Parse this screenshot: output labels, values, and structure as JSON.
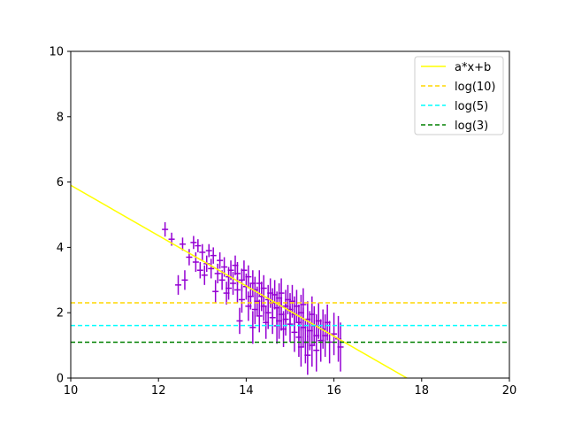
{
  "chart_data": {
    "type": "scatter",
    "title": "",
    "xlabel": "",
    "ylabel": "",
    "xlim": [
      10,
      20
    ],
    "ylim": [
      0,
      10
    ],
    "xticks": [
      "10",
      "12",
      "14",
      "16",
      "18",
      "20"
    ],
    "yticks": [
      "0",
      "2",
      "4",
      "6",
      "8",
      "10"
    ],
    "grid": false,
    "legend_position": "top-right",
    "colors": {
      "points": "#9400d3",
      "fit": "#ffff00",
      "log10": "#ffd700",
      "log5": "#00ffff",
      "log3": "#008000"
    },
    "lines": [
      {
        "name": "a*x+b",
        "kind": "linear",
        "slope": -0.77,
        "intercept": 13.6,
        "style": "solid",
        "color": "#ffff00"
      },
      {
        "name": "log(10)",
        "kind": "hline",
        "y": 2.303,
        "style": "dashed",
        "color": "#ffd700"
      },
      {
        "name": "log(5)",
        "kind": "hline",
        "y": 1.609,
        "style": "dashed",
        "color": "#00ffff"
      },
      {
        "name": "log(3)",
        "kind": "hline",
        "y": 1.099,
        "style": "dashed",
        "color": "#008000"
      }
    ],
    "points": [
      {
        "x": 12.15,
        "y": 4.55,
        "yerr": 0.22
      },
      {
        "x": 12.3,
        "y": 4.25,
        "yerr": 0.2
      },
      {
        "x": 12.45,
        "y": 2.85,
        "yerr": 0.3
      },
      {
        "x": 12.55,
        "y": 4.1,
        "yerr": 0.2
      },
      {
        "x": 12.6,
        "y": 3.0,
        "yerr": 0.3
      },
      {
        "x": 12.7,
        "y": 3.7,
        "yerr": 0.25
      },
      {
        "x": 12.8,
        "y": 4.15,
        "yerr": 0.2
      },
      {
        "x": 12.85,
        "y": 3.55,
        "yerr": 0.3
      },
      {
        "x": 12.9,
        "y": 4.05,
        "yerr": 0.2
      },
      {
        "x": 12.95,
        "y": 3.3,
        "yerr": 0.25
      },
      {
        "x": 13.0,
        "y": 3.85,
        "yerr": 0.25
      },
      {
        "x": 13.05,
        "y": 3.15,
        "yerr": 0.3
      },
      {
        "x": 13.1,
        "y": 3.5,
        "yerr": 0.25
      },
      {
        "x": 13.15,
        "y": 3.9,
        "yerr": 0.2
      },
      {
        "x": 13.2,
        "y": 3.35,
        "yerr": 0.3
      },
      {
        "x": 13.25,
        "y": 3.75,
        "yerr": 0.25
      },
      {
        "x": 13.3,
        "y": 2.65,
        "yerr": 0.35
      },
      {
        "x": 13.35,
        "y": 3.2,
        "yerr": 0.3
      },
      {
        "x": 13.4,
        "y": 3.6,
        "yerr": 0.25
      },
      {
        "x": 13.45,
        "y": 3.0,
        "yerr": 0.3
      },
      {
        "x": 13.5,
        "y": 3.4,
        "yerr": 0.3
      },
      {
        "x": 13.55,
        "y": 2.6,
        "yerr": 0.35
      },
      {
        "x": 13.6,
        "y": 3.1,
        "yerr": 0.3
      },
      {
        "x": 13.65,
        "y": 3.3,
        "yerr": 0.3
      },
      {
        "x": 13.7,
        "y": 2.9,
        "yerr": 0.35
      },
      {
        "x": 13.75,
        "y": 3.45,
        "yerr": 0.3
      },
      {
        "x": 13.8,
        "y": 2.7,
        "yerr": 0.4
      },
      {
        "x": 13.8,
        "y": 3.2,
        "yerr": 0.35
      },
      {
        "x": 13.85,
        "y": 1.75,
        "yerr": 0.4
      },
      {
        "x": 13.9,
        "y": 3.0,
        "yerr": 0.35
      },
      {
        "x": 13.9,
        "y": 2.4,
        "yerr": 0.4
      },
      {
        "x": 13.95,
        "y": 3.3,
        "yerr": 0.3
      },
      {
        "x": 14.0,
        "y": 2.8,
        "yerr": 0.4
      },
      {
        "x": 14.05,
        "y": 2.2,
        "yerr": 0.45
      },
      {
        "x": 14.05,
        "y": 3.1,
        "yerr": 0.35
      },
      {
        "x": 14.1,
        "y": 2.5,
        "yerr": 0.4
      },
      {
        "x": 14.15,
        "y": 2.9,
        "yerr": 0.4
      },
      {
        "x": 14.2,
        "y": 2.1,
        "yerr": 0.45
      },
      {
        "x": 14.2,
        "y": 2.7,
        "yerr": 0.4
      },
      {
        "x": 14.25,
        "y": 2.35,
        "yerr": 0.45
      },
      {
        "x": 14.3,
        "y": 2.9,
        "yerr": 0.4
      },
      {
        "x": 14.3,
        "y": 1.9,
        "yerr": 0.5
      },
      {
        "x": 14.35,
        "y": 2.5,
        "yerr": 0.45
      },
      {
        "x": 14.4,
        "y": 2.2,
        "yerr": 0.45
      },
      {
        "x": 14.4,
        "y": 2.75,
        "yerr": 0.4
      },
      {
        "x": 14.45,
        "y": 1.7,
        "yerr": 0.5
      },
      {
        "x": 14.5,
        "y": 2.4,
        "yerr": 0.45
      },
      {
        "x": 14.5,
        "y": 2.0,
        "yerr": 0.5
      },
      {
        "x": 14.55,
        "y": 2.6,
        "yerr": 0.45
      },
      {
        "x": 14.6,
        "y": 1.85,
        "yerr": 0.5
      },
      {
        "x": 14.6,
        "y": 2.3,
        "yerr": 0.45
      },
      {
        "x": 14.65,
        "y": 2.55,
        "yerr": 0.45
      },
      {
        "x": 14.7,
        "y": 1.6,
        "yerr": 0.55
      },
      {
        "x": 14.7,
        "y": 2.15,
        "yerr": 0.5
      },
      {
        "x": 14.75,
        "y": 2.45,
        "yerr": 0.45
      },
      {
        "x": 14.8,
        "y": 1.95,
        "yerr": 0.5
      },
      {
        "x": 14.8,
        "y": 2.6,
        "yerr": 0.45
      },
      {
        "x": 14.85,
        "y": 1.5,
        "yerr": 0.55
      },
      {
        "x": 14.9,
        "y": 2.2,
        "yerr": 0.5
      },
      {
        "x": 14.9,
        "y": 1.8,
        "yerr": 0.5
      },
      {
        "x": 14.95,
        "y": 2.4,
        "yerr": 0.45
      },
      {
        "x": 15.0,
        "y": 1.65,
        "yerr": 0.55
      },
      {
        "x": 15.0,
        "y": 2.1,
        "yerr": 0.5
      },
      {
        "x": 15.05,
        "y": 2.35,
        "yerr": 0.5
      },
      {
        "x": 15.1,
        "y": 1.4,
        "yerr": 0.6
      },
      {
        "x": 15.1,
        "y": 1.95,
        "yerr": 0.55
      },
      {
        "x": 15.15,
        "y": 2.2,
        "yerr": 0.5
      },
      {
        "x": 15.2,
        "y": 1.7,
        "yerr": 0.55
      },
      {
        "x": 15.2,
        "y": 1.25,
        "yerr": 0.6
      },
      {
        "x": 15.25,
        "y": 2.0,
        "yerr": 0.55
      },
      {
        "x": 15.3,
        "y": 1.55,
        "yerr": 0.6
      },
      {
        "x": 15.3,
        "y": 2.25,
        "yerr": 0.5
      },
      {
        "x": 15.35,
        "y": 1.1,
        "yerr": 0.65
      },
      {
        "x": 15.4,
        "y": 1.8,
        "yerr": 0.55
      },
      {
        "x": 15.4,
        "y": 0.7,
        "yerr": 0.6
      },
      {
        "x": 15.45,
        "y": 1.45,
        "yerr": 0.6
      },
      {
        "x": 15.5,
        "y": 1.95,
        "yerr": 0.55
      },
      {
        "x": 15.5,
        "y": 1.0,
        "yerr": 0.65
      },
      {
        "x": 15.55,
        "y": 1.6,
        "yerr": 0.6
      },
      {
        "x": 15.6,
        "y": 1.3,
        "yerr": 0.65
      },
      {
        "x": 15.65,
        "y": 1.75,
        "yerr": 0.55
      },
      {
        "x": 15.7,
        "y": 1.15,
        "yerr": 0.65
      },
      {
        "x": 15.75,
        "y": 1.5,
        "yerr": 0.6
      },
      {
        "x": 15.8,
        "y": 1.3,
        "yerr": 0.65
      },
      {
        "x": 15.85,
        "y": 1.7,
        "yerr": 0.55
      },
      {
        "x": 15.9,
        "y": 1.1,
        "yerr": 0.65
      },
      {
        "x": 16.0,
        "y": 1.35,
        "yerr": 0.65
      },
      {
        "x": 16.1,
        "y": 1.2,
        "yerr": 0.7
      },
      {
        "x": 16.15,
        "y": 0.95,
        "yerr": 0.75
      },
      {
        "x": 13.6,
        "y": 2.75,
        "yerr": 0.35
      },
      {
        "x": 14.15,
        "y": 1.55,
        "yerr": 0.5
      },
      {
        "x": 14.75,
        "y": 1.75,
        "yerr": 0.55
      },
      {
        "x": 15.25,
        "y": 0.95,
        "yerr": 0.6
      },
      {
        "x": 15.6,
        "y": 0.85,
        "yerr": 0.65
      }
    ]
  }
}
